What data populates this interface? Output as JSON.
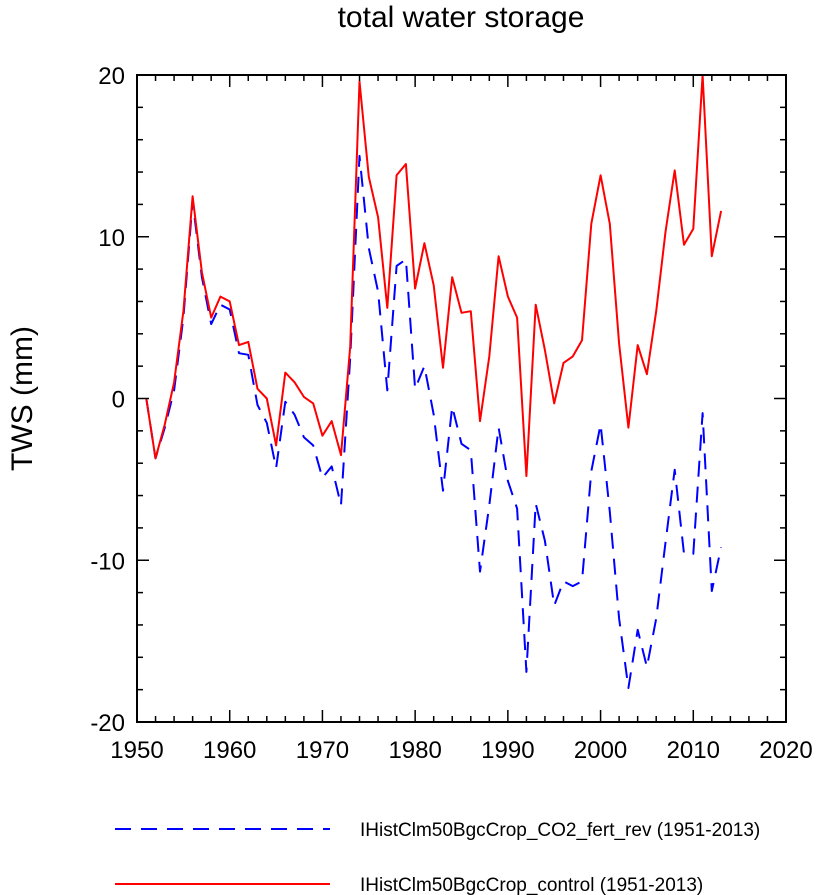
{
  "chart_data": {
    "type": "line",
    "title": "total water storage",
    "xlabel": "",
    "ylabel": "TWS  (mm)",
    "xlim": [
      1950,
      2020
    ],
    "ylim": [
      -20,
      20
    ],
    "xticks": [
      1950,
      1960,
      1970,
      1980,
      1990,
      2000,
      2010,
      2020
    ],
    "yticks": [
      -20,
      -10,
      0,
      10,
      20
    ],
    "ytick_labels": [
      "-20",
      "-10",
      "0",
      "10",
      "20"
    ],
    "grid": false,
    "legend_position": "bottom",
    "x": [
      1951,
      1952,
      1953,
      1954,
      1955,
      1956,
      1957,
      1958,
      1959,
      1960,
      1961,
      1962,
      1963,
      1964,
      1965,
      1966,
      1967,
      1968,
      1969,
      1970,
      1971,
      1972,
      1973,
      1974,
      1975,
      1976,
      1977,
      1978,
      1979,
      1980,
      1981,
      1982,
      1983,
      1984,
      1985,
      1986,
      1987,
      1988,
      1989,
      1990,
      1991,
      1992,
      1993,
      1994,
      1995,
      1996,
      1997,
      1998,
      1999,
      2000,
      2001,
      2002,
      2003,
      2004,
      2005,
      2006,
      2007,
      2008,
      2009,
      2010,
      2011,
      2012,
      2013
    ],
    "series": [
      {
        "name": "IHistClm50BgcCrop_CO2_fert_rev (1951-2013)",
        "color": "#0000ff",
        "dash": "dashed",
        "values": [
          0.0,
          -3.7,
          -1.8,
          0.5,
          5.0,
          12.2,
          7.5,
          4.6,
          5.8,
          5.5,
          2.8,
          2.7,
          -0.4,
          -1.5,
          -4.3,
          -0.2,
          -1.0,
          -2.4,
          -2.9,
          -4.9,
          -4.2,
          -6.6,
          2.5,
          15.0,
          9.3,
          6.6,
          0.5,
          8.2,
          8.6,
          0.6,
          2.0,
          -1.0,
          -5.7,
          -0.5,
          -2.8,
          -3.2,
          -10.7,
          -6.6,
          -1.8,
          -5.1,
          -6.8,
          -16.9,
          -6.5,
          -8.8,
          -12.8,
          -11.3,
          -11.6,
          -11.3,
          -4.5,
          -1.6,
          -7.0,
          -13.6,
          -17.9,
          -14.3,
          -16.6,
          -13.6,
          -8.9,
          -4.4,
          -9.6,
          -9.6,
          -0.9,
          -11.9,
          -9.2
        ]
      },
      {
        "name": "IHistClm50BgcCrop_control (1951-2013)",
        "color": "#ff0000",
        "dash": "solid",
        "values": [
          0.0,
          -3.7,
          -1.6,
          1.0,
          5.4,
          12.5,
          7.8,
          5.0,
          6.3,
          6.0,
          3.3,
          3.5,
          0.6,
          0.0,
          -2.9,
          1.6,
          1.0,
          0.1,
          -0.3,
          -2.3,
          -1.4,
          -3.5,
          3.2,
          19.6,
          13.7,
          11.2,
          5.6,
          13.8,
          14.5,
          6.8,
          9.6,
          7.0,
          1.9,
          7.5,
          5.3,
          5.4,
          -1.4,
          2.6,
          8.8,
          6.3,
          5.0,
          -4.8,
          5.8,
          3.0,
          -0.3,
          2.2,
          2.6,
          3.6,
          10.8,
          13.8,
          10.8,
          3.4,
          -1.8,
          3.3,
          1.5,
          5.4,
          10.3,
          14.1,
          9.5,
          10.5,
          20.0,
          8.8,
          11.6
        ]
      }
    ]
  }
}
